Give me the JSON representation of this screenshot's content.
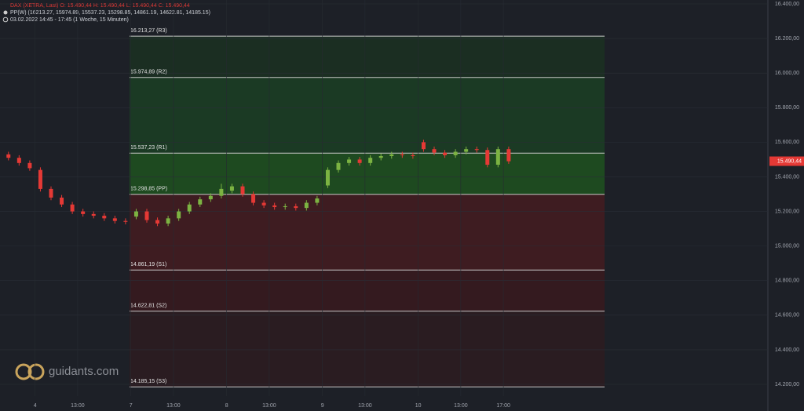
{
  "chart_data": {
    "type": "candlestick",
    "header": [
      "DAX (XETRA, Last)  O: 15.490,44  H: 15.490,44  L: 15.490,44  C: 15.490,44",
      "PP(W)  (16213.27, 15974.89, 15537.23, 15298.85, 14861.19, 14622.81, 14185.15)",
      "03.02.2022 14:45 - 17:45  (1 Woche, 15 Minuten)"
    ],
    "watermark": "guidants.com",
    "categories": [
      null,
      null,
      null,
      "4",
      null,
      null,
      null,
      "13:00",
      null,
      null,
      null,
      null,
      "7",
      null,
      null,
      null,
      "13:00",
      null,
      null,
      null,
      null,
      "8",
      null,
      null,
      null,
      "13:00",
      null,
      null,
      null,
      null,
      "9",
      null,
      null,
      null,
      "13:00",
      null,
      null,
      null,
      null,
      "10",
      null,
      null,
      null,
      "13:00",
      null,
      null,
      null,
      "17:00"
    ],
    "open": [
      15530,
      15510,
      15480,
      15440,
      15330,
      15280,
      15240,
      15200,
      15185,
      15175,
      15160,
      15145,
      15170,
      15200,
      15150,
      15130,
      15160,
      15200,
      15240,
      15270,
      15290,
      15320,
      15345,
      15300,
      15250,
      15235,
      15225,
      15230,
      15220,
      15250,
      15350,
      15440,
      15480,
      15500,
      15480,
      15510,
      15520,
      15530,
      15525,
      15600,
      15560,
      15540,
      15525,
      15545,
      15560,
      15555,
      15470,
      15560
    ],
    "high": [
      15545,
      15525,
      15495,
      15455,
      15345,
      15295,
      15255,
      15215,
      15200,
      15190,
      15175,
      15160,
      15215,
      15215,
      15165,
      15175,
      15215,
      15255,
      15285,
      15305,
      15360,
      15360,
      15360,
      15315,
      15265,
      15250,
      15245,
      15245,
      15265,
      15290,
      15455,
      15495,
      15515,
      15515,
      15525,
      15535,
      15545,
      15545,
      15540,
      15615,
      15575,
      15555,
      15560,
      15575,
      15575,
      15570,
      15575,
      15575
    ],
    "low": [
      15495,
      15465,
      15435,
      15315,
      15265,
      15225,
      15185,
      15170,
      15160,
      15145,
      15130,
      15125,
      15155,
      15135,
      15115,
      15115,
      15145,
      15185,
      15225,
      15255,
      15275,
      15305,
      15285,
      15235,
      15220,
      15210,
      15210,
      15205,
      15205,
      15235,
      15335,
      15425,
      15465,
      15465,
      15465,
      15495,
      15505,
      15510,
      15505,
      15545,
      15525,
      15510,
      15510,
      15530,
      15540,
      15455,
      15455,
      15475
    ],
    "close": [
      15510,
      15480,
      15450,
      15330,
      15280,
      15240,
      15200,
      15185,
      15175,
      15160,
      15145,
      15140,
      15200,
      15150,
      15130,
      15160,
      15200,
      15240,
      15270,
      15290,
      15330,
      15345,
      15300,
      15250,
      15235,
      15225,
      15230,
      15220,
      15250,
      15275,
      15440,
      15480,
      15500,
      15480,
      15510,
      15520,
      15530,
      15525,
      15520,
      15560,
      15540,
      15525,
      15545,
      15560,
      15555,
      15470,
      15560,
      15490
    ],
    "up_color": "#7cb342",
    "down_color": "#e53935",
    "levels": [
      {
        "value": 16213.27,
        "label": "16.213,27 (R3)"
      },
      {
        "value": 15974.89,
        "label": "15.974,89 (R2)"
      },
      {
        "value": 15537.23,
        "label": "15.537,23 (R1)"
      },
      {
        "value": 15298.85,
        "label": "15.298,85 (PP)"
      },
      {
        "value": 14861.19,
        "label": "14.861,19 (S1)"
      },
      {
        "value": 14622.81,
        "label": "14.622,81 (S2)"
      },
      {
        "value": 14185.15,
        "label": "14.185,15 (S3)"
      }
    ],
    "zone_colors": [
      "#1b2e22",
      "#1b3a24",
      "#1e4a20",
      "#3e1c21",
      "#341a1f",
      "#2a1c21"
    ],
    "last": {
      "value": 15490.44,
      "label": "15.490,44"
    },
    "ylim": [
      14200,
      16400
    ],
    "yticks": [
      {
        "value": 16400,
        "label": "16.400,00"
      },
      {
        "value": 16200,
        "label": "16.200,00"
      },
      {
        "value": 16000,
        "label": "16.000,00"
      },
      {
        "value": 15800,
        "label": "15.800,00"
      },
      {
        "value": 15600,
        "label": "15.600,00"
      },
      {
        "value": 15400,
        "label": "15.400,00"
      },
      {
        "value": 15200,
        "label": "15.200,00"
      },
      {
        "value": 15000,
        "label": "15.000,00"
      },
      {
        "value": 14800,
        "label": "14.800,00"
      },
      {
        "value": 14600,
        "label": "14.600,00"
      },
      {
        "value": 14400,
        "label": "14.400,00"
      },
      {
        "value": 14200,
        "label": "14.200,00"
      }
    ],
    "grid": true
  }
}
